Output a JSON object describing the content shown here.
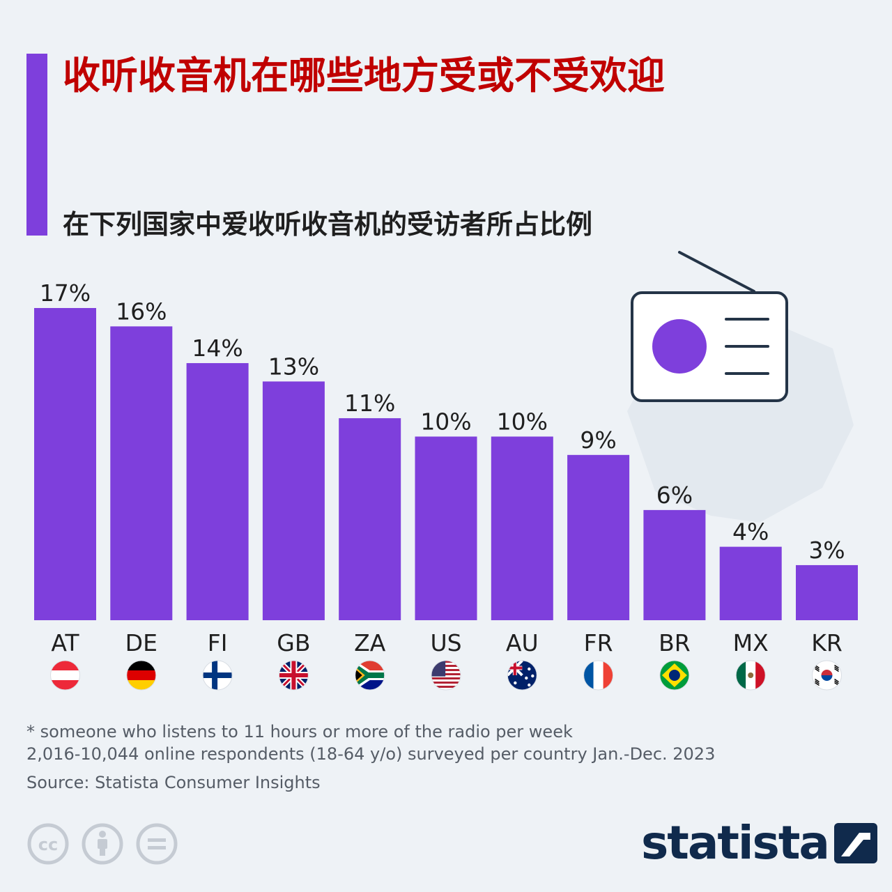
{
  "title": "收听收音机在哪些地方受或不受欢迎",
  "subtitle": "在下列国家中爱收听收音机的受访者所占比例",
  "chart_data": {
    "type": "bar",
    "categories": [
      "AT",
      "DE",
      "FI",
      "GB",
      "ZA",
      "US",
      "AU",
      "FR",
      "BR",
      "MX",
      "KR"
    ],
    "values": [
      17,
      16,
      14,
      13,
      11,
      10,
      10,
      9,
      6,
      4,
      3
    ],
    "value_labels": [
      "17%",
      "16%",
      "14%",
      "13%",
      "11%",
      "10%",
      "10%",
      "9%",
      "6%",
      "4%",
      "3%"
    ],
    "bar_color": "#7e3fdc",
    "unit": "%",
    "ylim": [
      0,
      17
    ]
  },
  "flags": [
    "austria-flag-icon",
    "germany-flag-icon",
    "finland-flag-icon",
    "uk-flag-icon",
    "south-africa-flag-icon",
    "usa-flag-icon",
    "australia-flag-icon",
    "france-flag-icon",
    "brazil-flag-icon",
    "mexico-flag-icon",
    "south-korea-flag-icon"
  ],
  "illustration": "radio-icon",
  "footnote": {
    "line1": "* someone who listens to 11 hours or more of the radio per week",
    "line2": "2,016-10,044 online respondents (18-64 y/o) surveyed per country Jan.-Dec. 2023"
  },
  "source": "Source: Statista Consumer Insights",
  "license_icons": [
    "cc-icon",
    "attribution-icon",
    "no-derivatives-icon"
  ],
  "brand": {
    "name": "statista"
  },
  "colors": {
    "accent": "#7e3fdc",
    "title": "#c00000",
    "text": "#1f1f1f",
    "muted": "#555c66",
    "brand": "#102a4c",
    "background": "#eef2f6"
  }
}
